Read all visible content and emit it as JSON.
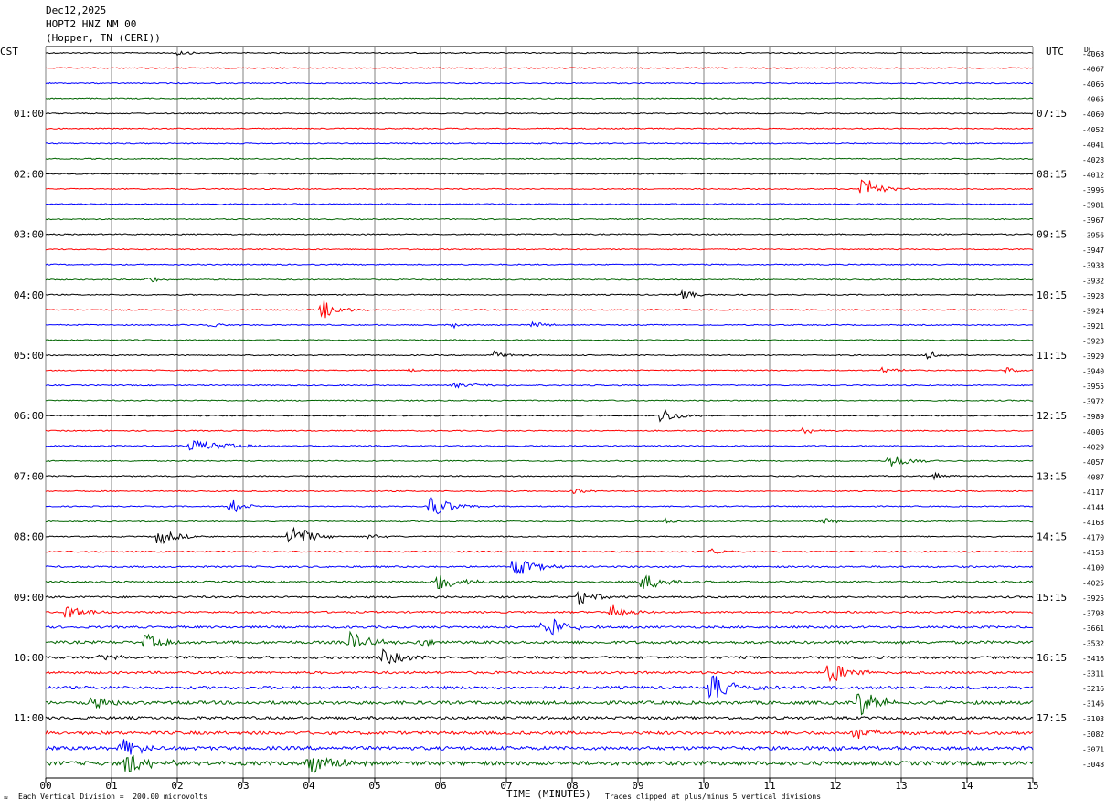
{
  "header": {
    "date": "Dec12,2025",
    "station": "HOPT2 HNZ NM 00",
    "location": "(Hopper, TN (CERI))"
  },
  "left_tz": "CST",
  "right_tz": "UTC",
  "dc_label": "DC",
  "footer": {
    "scale_note": "Each Vertical Division =  200.00 microvolts",
    "xlabel": "TIME (MINUTES)",
    "clip_note": "Traces clipped at plus/minus 5 vertical divisions",
    "corner_mark": "≈"
  },
  "colors": {
    "cycle": [
      "#000000",
      "#ff0000",
      "#0000ff",
      "#006400"
    ],
    "grid": "#808080"
  },
  "chart_data": {
    "type": "line",
    "title": "Dec12,2025 HOPT2 HNZ NM 00 (Hopper, TN (CERI))",
    "xlabel": "TIME (MINUTES)",
    "xlim": [
      0,
      15
    ],
    "x_ticks": [
      "00",
      "01",
      "02",
      "03",
      "04",
      "05",
      "06",
      "07",
      "08",
      "09",
      "10",
      "11",
      "12",
      "13",
      "14",
      "15"
    ],
    "traces_per_hour": 4,
    "left_hour_labels": [
      "01:00",
      "02:00",
      "03:00",
      "04:00",
      "05:00",
      "06:00",
      "07:00",
      "08:00",
      "09:00",
      "10:00",
      "11:00"
    ],
    "right_hour_labels": [
      "07:15",
      "08:15",
      "09:15",
      "10:15",
      "11:15",
      "12:15",
      "13:15",
      "14:15",
      "15:15",
      "16:15",
      "17:15"
    ],
    "dc_offsets": [
      -4068,
      -4067,
      -4066,
      -4065,
      -4060,
      -4052,
      -4041,
      -4028,
      -4012,
      -3996,
      -3981,
      -3967,
      -3956,
      -3947,
      -3938,
      -3932,
      -3928,
      -3924,
      -3921,
      -3923,
      -3929,
      -3940,
      -3955,
      -3972,
      -3989,
      -4005,
      -4029,
      -4057,
      -4087,
      -4117,
      -4144,
      -4163,
      -4170,
      -4153,
      -4100,
      -4025,
      -3925,
      -3798,
      -3661,
      -3532,
      -3416,
      -3311,
      -3216,
      -3146,
      -3103,
      -3082,
      -3071,
      -3048
    ],
    "noise_amplitude": [
      0.6,
      0.6,
      0.6,
      0.6,
      0.6,
      0.6,
      0.6,
      0.6,
      0.6,
      0.6,
      0.6,
      0.6,
      0.6,
      0.6,
      0.6,
      0.6,
      0.6,
      0.6,
      0.6,
      0.6,
      0.6,
      0.6,
      0.6,
      0.6,
      0.6,
      0.6,
      0.6,
      0.6,
      0.6,
      0.6,
      0.6,
      0.6,
      0.6,
      0.7,
      0.9,
      1.0,
      1.0,
      1.0,
      1.2,
      1.5,
      1.4,
      1.3,
      1.6,
      1.8,
      1.5,
      1.7,
      1.9,
      2.2
    ],
    "events": [
      {
        "trace": 0,
        "minute": 2.0,
        "amp": 1.5,
        "dur": 0.3
      },
      {
        "trace": 9,
        "minute": 12.4,
        "amp": 8,
        "dur": 0.35
      },
      {
        "trace": 15,
        "minute": 1.55,
        "amp": 1.8,
        "dur": 0.3
      },
      {
        "trace": 16,
        "minute": 9.6,
        "amp": 4,
        "dur": 0.3
      },
      {
        "trace": 17,
        "minute": 4.2,
        "amp": 6,
        "dur": 0.35
      },
      {
        "trace": 18,
        "minute": 2.5,
        "amp": 1.5,
        "dur": 0.3
      },
      {
        "trace": 18,
        "minute": 6.2,
        "amp": 2,
        "dur": 0.2
      },
      {
        "trace": 18,
        "minute": 7.4,
        "amp": 2,
        "dur": 0.3
      },
      {
        "trace": 20,
        "minute": 6.8,
        "amp": 2.5,
        "dur": 0.3
      },
      {
        "trace": 20,
        "minute": 13.4,
        "amp": 2.5,
        "dur": 0.3
      },
      {
        "trace": 21,
        "minute": 12.7,
        "amp": 2,
        "dur": 0.3
      },
      {
        "trace": 21,
        "minute": 14.6,
        "amp": 2.5,
        "dur": 0.3
      },
      {
        "trace": 21,
        "minute": 5.5,
        "amp": 1.5,
        "dur": 0.2
      },
      {
        "trace": 22,
        "minute": 6.2,
        "amp": 1.5,
        "dur": 0.8
      },
      {
        "trace": 24,
        "minute": 9.35,
        "amp": 5,
        "dur": 0.35
      },
      {
        "trace": 25,
        "minute": 11.5,
        "amp": 2,
        "dur": 0.3
      },
      {
        "trace": 26,
        "minute": 2.2,
        "amp": 3.5,
        "dur": 0.8
      },
      {
        "trace": 27,
        "minute": 12.8,
        "amp": 5,
        "dur": 0.4
      },
      {
        "trace": 28,
        "minute": 13.5,
        "amp": 1.8,
        "dur": 0.3
      },
      {
        "trace": 29,
        "minute": 8.0,
        "amp": 1.5,
        "dur": 0.4
      },
      {
        "trace": 30,
        "minute": 2.8,
        "amp": 5,
        "dur": 0.3
      },
      {
        "trace": 30,
        "minute": 5.85,
        "amp": 7,
        "dur": 0.45
      },
      {
        "trace": 31,
        "minute": 9.4,
        "amp": 1.8,
        "dur": 0.25
      },
      {
        "trace": 31,
        "minute": 11.8,
        "amp": 2.2,
        "dur": 0.3
      },
      {
        "trace": 32,
        "minute": 1.7,
        "amp": 5,
        "dur": 0.4
      },
      {
        "trace": 32,
        "minute": 3.7,
        "amp": 8,
        "dur": 0.45
      },
      {
        "trace": 32,
        "minute": 4.9,
        "amp": 1.5,
        "dur": 0.3
      },
      {
        "trace": 33,
        "minute": 10.1,
        "amp": 2,
        "dur": 0.35
      },
      {
        "trace": 34,
        "minute": 7.1,
        "amp": 6,
        "dur": 0.5
      },
      {
        "trace": 35,
        "minute": 5.95,
        "amp": 5,
        "dur": 0.5
      },
      {
        "trace": 35,
        "minute": 9.05,
        "amp": 5,
        "dur": 0.5
      },
      {
        "trace": 36,
        "minute": 8.1,
        "amp": 4.5,
        "dur": 0.4
      },
      {
        "trace": 37,
        "minute": 0.3,
        "amp": 4.5,
        "dur": 0.4
      },
      {
        "trace": 37,
        "minute": 8.6,
        "amp": 5,
        "dur": 0.4
      },
      {
        "trace": 38,
        "minute": 7.55,
        "amp": 8,
        "dur": 0.45
      },
      {
        "trace": 39,
        "minute": 1.5,
        "amp": 5,
        "dur": 0.4
      },
      {
        "trace": 39,
        "minute": 4.6,
        "amp": 6,
        "dur": 0.45
      },
      {
        "trace": 39,
        "minute": 5.7,
        "amp": 3,
        "dur": 0.3
      },
      {
        "trace": 40,
        "minute": 0.8,
        "amp": 2,
        "dur": 0.5
      },
      {
        "trace": 40,
        "minute": 5.1,
        "amp": 5,
        "dur": 0.45
      },
      {
        "trace": 41,
        "minute": 11.9,
        "amp": 8,
        "dur": 0.4
      },
      {
        "trace": 42,
        "minute": 10.1,
        "amp": 8,
        "dur": 0.5
      },
      {
        "trace": 43,
        "minute": 0.7,
        "amp": 4.5,
        "dur": 0.4
      },
      {
        "trace": 43,
        "minute": 12.35,
        "amp": 8,
        "dur": 0.5
      },
      {
        "trace": 45,
        "minute": 12.3,
        "amp": 5,
        "dur": 0.35
      },
      {
        "trace": 46,
        "minute": 1.15,
        "amp": 5,
        "dur": 0.5
      },
      {
        "trace": 46,
        "minute": 11.9,
        "amp": 1.5,
        "dur": 0.25
      },
      {
        "trace": 47,
        "minute": 1.2,
        "amp": 6,
        "dur": 0.6
      },
      {
        "trace": 47,
        "minute": 4.0,
        "amp": 8,
        "dur": 0.5
      }
    ]
  }
}
